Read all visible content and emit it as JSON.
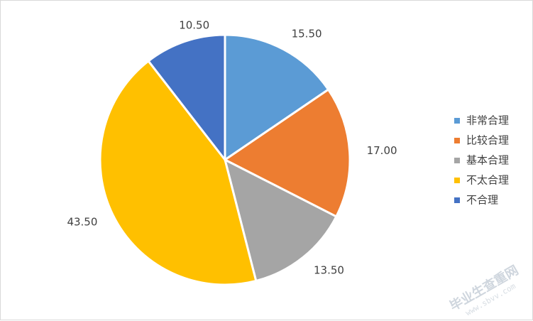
{
  "chart_data": {
    "type": "pie",
    "title": "",
    "slices": [
      {
        "label": "非常合理",
        "value": 15.5,
        "display": "15.50",
        "color": "#5B9BD5"
      },
      {
        "label": "比较合理",
        "value": 17.0,
        "display": "17.00",
        "color": "#ED7D31"
      },
      {
        "label": "基本合理",
        "value": 13.5,
        "display": "13.50",
        "color": "#A5A5A5"
      },
      {
        "label": "不太合理",
        "value": 43.5,
        "display": "43.50",
        "color": "#FFC000"
      },
      {
        "label": "不合理",
        "value": 10.5,
        "display": "10.50",
        "color": "#4472C4"
      }
    ],
    "legend_position": "right"
  },
  "watermark": {
    "text": "毕业生查重网",
    "subtext": "www.sbvv.com"
  }
}
